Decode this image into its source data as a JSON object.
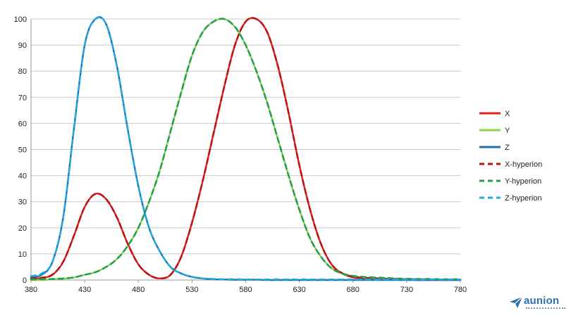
{
  "chart_data": {
    "type": "line",
    "title": "",
    "xlabel": "",
    "ylabel": "",
    "xlim": [
      380,
      780
    ],
    "ylim": [
      0,
      100
    ],
    "x_ticks": [
      380,
      430,
      480,
      530,
      580,
      630,
      680,
      730,
      780
    ],
    "y_ticks": [
      0,
      10,
      20,
      30,
      40,
      50,
      60,
      70,
      80,
      90,
      100
    ],
    "grid": "horizontal",
    "legend_position": "right",
    "x": [
      380,
      390,
      400,
      410,
      420,
      430,
      440,
      450,
      460,
      470,
      480,
      490,
      500,
      510,
      520,
      530,
      540,
      550,
      560,
      570,
      580,
      590,
      600,
      610,
      620,
      630,
      640,
      650,
      660,
      670,
      680,
      690,
      700,
      710,
      720,
      730,
      740,
      750,
      760,
      770,
      780
    ],
    "series": [
      {
        "name": "X",
        "color": "#e02020",
        "style": "solid",
        "values": [
          0.5,
          0.8,
          2,
          7,
          17,
          28,
          33,
          31,
          24,
          14,
          6,
          2,
          0.6,
          2,
          9,
          22,
          38,
          56,
          74,
          90,
          99,
          100,
          95,
          82,
          64,
          44,
          27,
          14,
          6,
          2.5,
          1,
          0.5,
          0.3,
          0.2,
          0.1,
          0.1,
          0,
          0,
          0,
          0,
          0
        ]
      },
      {
        "name": "Y",
        "color": "#8fd24a",
        "style": "solid",
        "values": [
          0,
          0,
          0.3,
          0.5,
          1,
          2,
          3,
          5,
          8,
          13,
          20,
          30,
          42,
          57,
          72,
          86,
          95,
          99,
          100,
          97,
          90,
          80,
          68,
          54,
          40,
          27,
          16,
          9,
          4.5,
          2.5,
          1.5,
          1,
          0.8,
          0.6,
          0.4,
          0.3,
          0.2,
          0.2,
          0.1,
          0.1,
          0
        ]
      },
      {
        "name": "Z",
        "color": "#1f6fb2",
        "style": "solid",
        "values": [
          1,
          2,
          7,
          24,
          58,
          90,
          100,
          98,
          82,
          58,
          36,
          20,
          11,
          5,
          2.5,
          1.2,
          0.6,
          0.3,
          0.2,
          0.1,
          0.1,
          0.1,
          0,
          0,
          0,
          0,
          0,
          0,
          0,
          0,
          0,
          0,
          0,
          0,
          0,
          0,
          0,
          0,
          0,
          0,
          0
        ]
      },
      {
        "name": "X-hyperion",
        "color": "#b81414",
        "style": "dashed",
        "values": [
          0.6,
          0.9,
          2.1,
          7,
          17,
          28,
          33,
          31,
          24,
          14,
          6,
          2,
          0.6,
          2,
          9,
          22,
          38,
          56,
          74,
          90,
          99,
          100,
          95,
          82,
          64,
          44,
          27,
          14,
          6,
          2.6,
          1.2,
          0.8,
          0.6,
          0.5,
          0.4,
          0.3,
          0.3,
          0.2,
          0.2,
          0.2,
          0.2
        ]
      },
      {
        "name": "Y-hyperion",
        "color": "#22a050",
        "style": "dashed",
        "values": [
          0.2,
          0.3,
          0.4,
          0.6,
          1,
          2,
          3,
          5,
          8,
          13,
          20,
          30,
          42,
          57,
          72,
          86,
          95,
          99,
          100,
          97,
          90,
          80,
          68,
          54,
          40,
          27,
          16,
          9,
          4.5,
          2.5,
          1.6,
          1.2,
          1,
          0.8,
          0.6,
          0.5,
          0.4,
          0.4,
          0.3,
          0.3,
          0.3
        ]
      },
      {
        "name": "Z-hyperion",
        "color": "#22a8e0",
        "style": "dashed",
        "values": [
          1.5,
          2.5,
          7,
          24,
          58,
          90,
          100,
          98,
          82,
          58,
          36,
          20,
          11,
          5,
          2.5,
          1.2,
          0.6,
          0.4,
          0.3,
          0.3,
          0.2,
          0.2,
          0.2,
          0.2,
          0.2,
          0.2,
          0.2,
          0.2,
          0.2,
          0.2,
          0.2,
          0.2,
          0.2,
          0.2,
          0.2,
          0.2,
          0.2,
          0.2,
          0.2,
          0.2,
          0.2
        ]
      }
    ]
  },
  "logo": {
    "text": "aunion",
    "icon": "paper-plane-icon",
    "color": "#2a6fb3"
  }
}
